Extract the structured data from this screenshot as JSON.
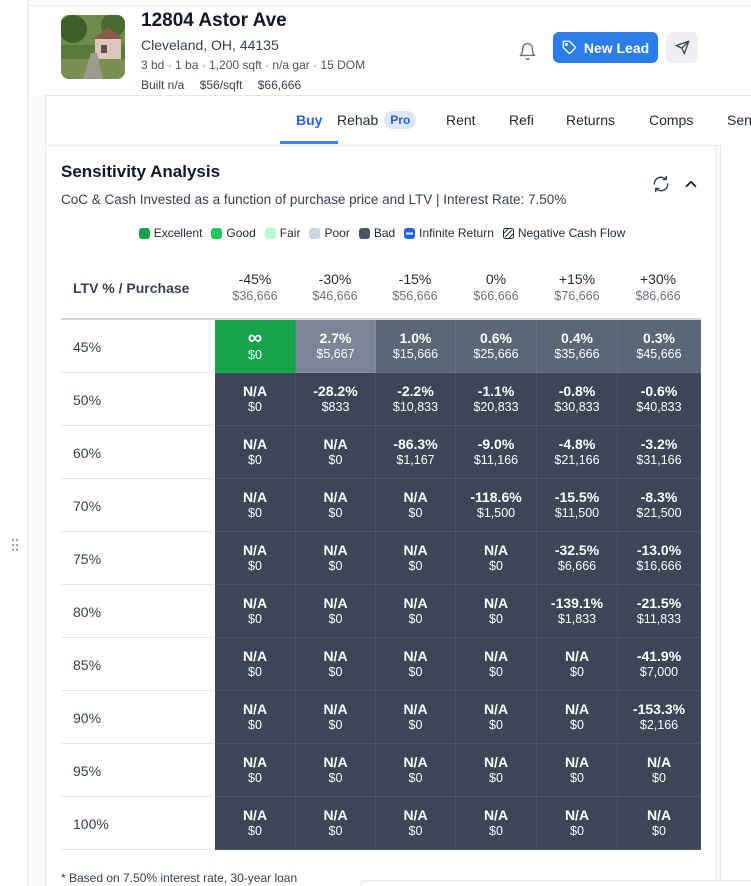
{
  "property": {
    "title": "12804 Astor Ave",
    "address": "Cleveland, OH, 44135",
    "specs": "3 bd · 1 ba · 1,200 sqft · n/a gar · 15 DOM",
    "built": "Built n/a",
    "price_per_sqft": "$56/sqft",
    "price": "$66,666"
  },
  "header": {
    "new_lead_label": "New Lead"
  },
  "tabs": [
    {
      "label": "Buy"
    },
    {
      "label": "Rehab",
      "badge": "Pro"
    },
    {
      "label": "Rent"
    },
    {
      "label": "Refi"
    },
    {
      "label": "Returns"
    },
    {
      "label": "Comps"
    },
    {
      "label": "Sen"
    }
  ],
  "analysis": {
    "title": "Sensitivity Analysis",
    "subtitle": "CoC & Cash Invested as a function of purchase price and LTV | Interest Rate: 7.50%",
    "legend": [
      {
        "label": "Excellent",
        "color": "#16a34a"
      },
      {
        "label": "Good",
        "color": "#22c55e"
      },
      {
        "label": "Fair",
        "color": "#bbf7d0"
      },
      {
        "label": "Poor",
        "color": "#cbd5e1"
      },
      {
        "label": "Bad",
        "color": "#475569"
      },
      {
        "label": "Infinite Return",
        "color": "#2563eb"
      },
      {
        "label": "Negative Cash Flow",
        "color": ""
      }
    ],
    "row_header": "LTV % / Purchase",
    "columns": [
      {
        "pct": "-45%",
        "price": "$36,666"
      },
      {
        "pct": "-30%",
        "price": "$46,666"
      },
      {
        "pct": "-15%",
        "price": "$56,666"
      },
      {
        "pct": "0%",
        "price": "$66,666"
      },
      {
        "pct": "+15%",
        "price": "$76,666"
      },
      {
        "pct": "+30%",
        "price": "$86,666"
      }
    ],
    "rows": [
      {
        "ltv": "45%",
        "cells": [
          {
            "v": "∞",
            "c": "$0",
            "tone": "excellent"
          },
          {
            "v": "2.7%",
            "c": "$5,667",
            "tone": "poor"
          },
          {
            "v": "1.0%",
            "c": "$15,666",
            "tone": "bad"
          },
          {
            "v": "0.6%",
            "c": "$25,666",
            "tone": "bad"
          },
          {
            "v": "0.4%",
            "c": "$35,666",
            "tone": "bad"
          },
          {
            "v": "0.3%",
            "c": "$45,666",
            "tone": "bad"
          }
        ]
      },
      {
        "ltv": "50%",
        "cells": [
          {
            "v": "N/A",
            "c": "$0",
            "tone": "neg"
          },
          {
            "v": "-28.2%",
            "c": "$833",
            "tone": "neg"
          },
          {
            "v": "-2.2%",
            "c": "$10,833",
            "tone": "neg"
          },
          {
            "v": "-1.1%",
            "c": "$20,833",
            "tone": "neg"
          },
          {
            "v": "-0.8%",
            "c": "$30,833",
            "tone": "neg"
          },
          {
            "v": "-0.6%",
            "c": "$40,833",
            "tone": "neg"
          }
        ]
      },
      {
        "ltv": "60%",
        "cells": [
          {
            "v": "N/A",
            "c": "$0",
            "tone": "neg"
          },
          {
            "v": "N/A",
            "c": "$0",
            "tone": "neg"
          },
          {
            "v": "-86.3%",
            "c": "$1,167",
            "tone": "neg"
          },
          {
            "v": "-9.0%",
            "c": "$11,166",
            "tone": "neg"
          },
          {
            "v": "-4.8%",
            "c": "$21,166",
            "tone": "neg"
          },
          {
            "v": "-3.2%",
            "c": "$31,166",
            "tone": "neg"
          }
        ]
      },
      {
        "ltv": "70%",
        "cells": [
          {
            "v": "N/A",
            "c": "$0",
            "tone": "neg"
          },
          {
            "v": "N/A",
            "c": "$0",
            "tone": "neg"
          },
          {
            "v": "N/A",
            "c": "$0",
            "tone": "neg"
          },
          {
            "v": "-118.6%",
            "c": "$1,500",
            "tone": "neg"
          },
          {
            "v": "-15.5%",
            "c": "$11,500",
            "tone": "neg"
          },
          {
            "v": "-8.3%",
            "c": "$21,500",
            "tone": "neg"
          }
        ]
      },
      {
        "ltv": "75%",
        "cells": [
          {
            "v": "N/A",
            "c": "$0",
            "tone": "neg"
          },
          {
            "v": "N/A",
            "c": "$0",
            "tone": "neg"
          },
          {
            "v": "N/A",
            "c": "$0",
            "tone": "neg"
          },
          {
            "v": "N/A",
            "c": "$0",
            "tone": "neg"
          },
          {
            "v": "-32.5%",
            "c": "$6,666",
            "tone": "neg"
          },
          {
            "v": "-13.0%",
            "c": "$16,666",
            "tone": "neg"
          }
        ]
      },
      {
        "ltv": "80%",
        "cells": [
          {
            "v": "N/A",
            "c": "$0",
            "tone": "neg"
          },
          {
            "v": "N/A",
            "c": "$0",
            "tone": "neg"
          },
          {
            "v": "N/A",
            "c": "$0",
            "tone": "neg"
          },
          {
            "v": "N/A",
            "c": "$0",
            "tone": "neg"
          },
          {
            "v": "-139.1%",
            "c": "$1,833",
            "tone": "neg"
          },
          {
            "v": "-21.5%",
            "c": "$11,833",
            "tone": "neg"
          }
        ]
      },
      {
        "ltv": "85%",
        "cells": [
          {
            "v": "N/A",
            "c": "$0",
            "tone": "neg"
          },
          {
            "v": "N/A",
            "c": "$0",
            "tone": "neg"
          },
          {
            "v": "N/A",
            "c": "$0",
            "tone": "neg"
          },
          {
            "v": "N/A",
            "c": "$0",
            "tone": "neg"
          },
          {
            "v": "N/A",
            "c": "$0",
            "tone": "neg"
          },
          {
            "v": "-41.9%",
            "c": "$7,000",
            "tone": "neg"
          }
        ]
      },
      {
        "ltv": "90%",
        "cells": [
          {
            "v": "N/A",
            "c": "$0",
            "tone": "neg"
          },
          {
            "v": "N/A",
            "c": "$0",
            "tone": "neg"
          },
          {
            "v": "N/A",
            "c": "$0",
            "tone": "neg"
          },
          {
            "v": "N/A",
            "c": "$0",
            "tone": "neg"
          },
          {
            "v": "N/A",
            "c": "$0",
            "tone": "neg"
          },
          {
            "v": "-153.3%",
            "c": "$2,166",
            "tone": "neg"
          }
        ]
      },
      {
        "ltv": "95%",
        "cells": [
          {
            "v": "N/A",
            "c": "$0",
            "tone": "neg"
          },
          {
            "v": "N/A",
            "c": "$0",
            "tone": "neg"
          },
          {
            "v": "N/A",
            "c": "$0",
            "tone": "neg"
          },
          {
            "v": "N/A",
            "c": "$0",
            "tone": "neg"
          },
          {
            "v": "N/A",
            "c": "$0",
            "tone": "neg"
          },
          {
            "v": "N/A",
            "c": "$0",
            "tone": "neg"
          }
        ]
      },
      {
        "ltv": "100%",
        "cells": [
          {
            "v": "N/A",
            "c": "$0",
            "tone": "neg"
          },
          {
            "v": "N/A",
            "c": "$0",
            "tone": "neg"
          },
          {
            "v": "N/A",
            "c": "$0",
            "tone": "neg"
          },
          {
            "v": "N/A",
            "c": "$0",
            "tone": "neg"
          },
          {
            "v": "N/A",
            "c": "$0",
            "tone": "neg"
          },
          {
            "v": "N/A",
            "c": "$0",
            "tone": "neg"
          }
        ]
      }
    ],
    "footnote": "* Based on 7.50% interest rate, 30-year loan"
  },
  "colors": {
    "accent": "#2b7de9",
    "excellent": "#16a34a",
    "poor": "#7b8596",
    "bad": "#5b6677",
    "neg": "#3d4657"
  }
}
